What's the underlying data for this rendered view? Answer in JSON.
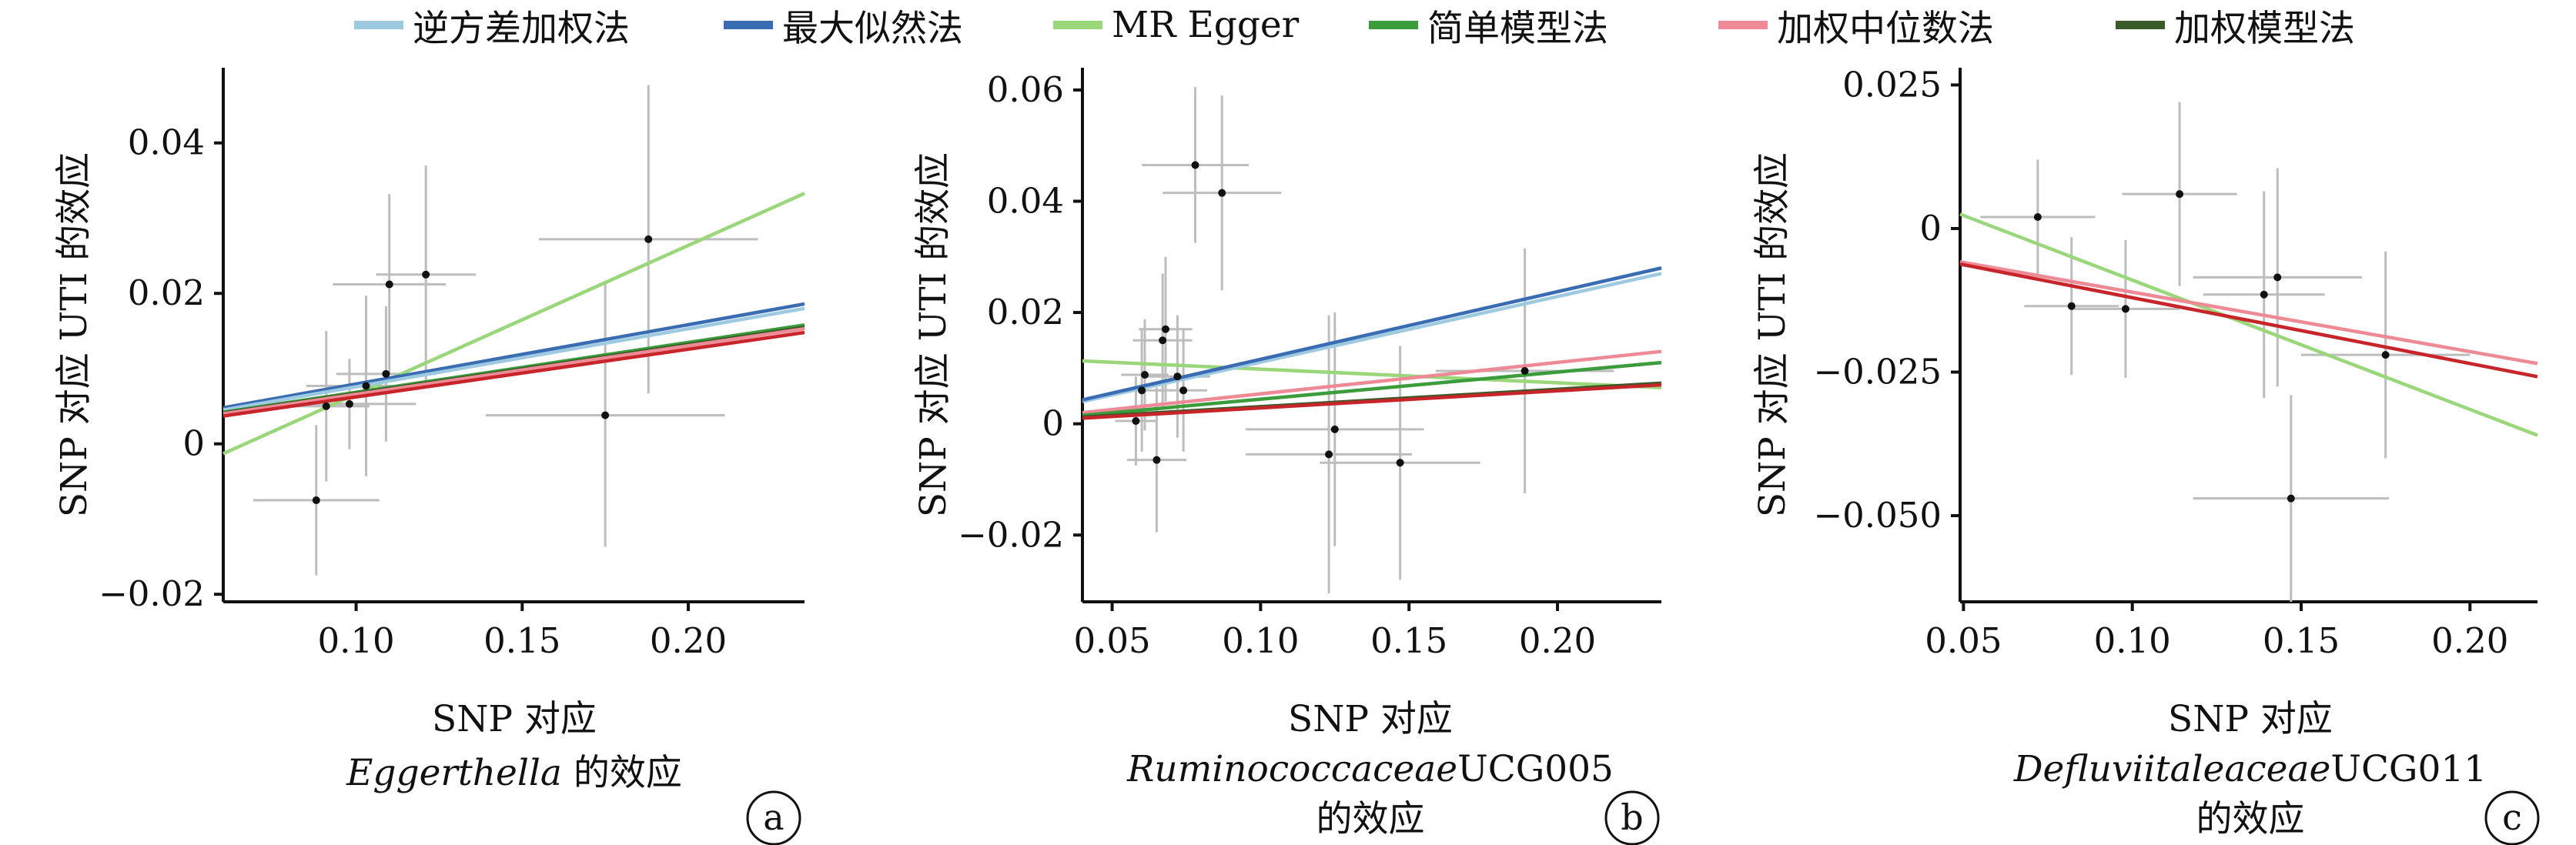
{
  "legend": [
    {
      "key": "ivw",
      "label": "逆方差加权法",
      "color": "#9ecae1"
    },
    {
      "key": "ml",
      "label": "最大似然法",
      "color": "#3a6cb4"
    },
    {
      "key": "egger",
      "label": "MR Egger",
      "color": "#9ad67a"
    },
    {
      "key": "simple",
      "label": "简单模型法",
      "color": "#3a9c3a"
    },
    {
      "key": "wmedian",
      "label": "加权中位数法",
      "color": "#ee8a95"
    },
    {
      "key": "wmode",
      "label": "加权模型法",
      "color": "#3a5a28"
    }
  ],
  "chart_data": [
    {
      "type": "scatter",
      "panel_label": "a",
      "ylabel": "SNP 对应 UTI 的效应",
      "xlabel_lines": [
        {
          "text": "SNP 对应",
          "italic": ""
        },
        {
          "text": " 的效应",
          "italic": "Eggerthella"
        }
      ],
      "xlim": [
        0.06,
        0.235
      ],
      "ylim": [
        -0.021,
        0.05
      ],
      "xticks": [
        0.1,
        0.15,
        0.2
      ],
      "xtick_labels": [
        "0.10",
        "0.15",
        "0.20"
      ],
      "yticks": [
        -0.02,
        0,
        0.02,
        0.04
      ],
      "ytick_labels": [
        "−0.02",
        "0",
        "0.02",
        "0.04"
      ],
      "points": [
        {
          "x": 0.088,
          "y": -0.0075,
          "xerr": 0.019,
          "yerr": 0.01
        },
        {
          "x": 0.091,
          "y": 0.005,
          "xerr": 0.013,
          "yerr": 0.01
        },
        {
          "x": 0.098,
          "y": 0.0053,
          "xerr": 0.02,
          "yerr": 0.006
        },
        {
          "x": 0.103,
          "y": 0.0077,
          "xerr": 0.018,
          "yerr": 0.012
        },
        {
          "x": 0.109,
          "y": 0.0093,
          "xerr": 0.015,
          "yerr": 0.009
        },
        {
          "x": 0.11,
          "y": 0.0212,
          "xerr": 0.017,
          "yerr": 0.012
        },
        {
          "x": 0.121,
          "y": 0.0225,
          "xerr": 0.015,
          "yerr": 0.0145
        },
        {
          "x": 0.175,
          "y": 0.0038,
          "xerr": 0.036,
          "yerr": 0.0175
        },
        {
          "x": 0.188,
          "y": 0.0272,
          "xerr": 0.033,
          "yerr": 0.0205
        }
      ],
      "lines": [
        {
          "method": "egger",
          "y0": -0.0013,
          "y1": 0.0333
        },
        {
          "method": "ml",
          "y0": 0.0048,
          "y1": 0.0186
        },
        {
          "method": "ivw",
          "y0": 0.0045,
          "y1": 0.018
        },
        {
          "method": "simple",
          "y0": 0.0042,
          "y1": 0.0158
        },
        {
          "method": "wmode",
          "y0": 0.0041,
          "y1": 0.0155
        },
        {
          "method": "wmedian",
          "y0": 0.004,
          "y1": 0.0153
        },
        {
          "method": "red",
          "y0": 0.0037,
          "y1": 0.0148
        }
      ]
    },
    {
      "type": "scatter",
      "panel_label": "b",
      "ylabel": "SNP 对应 UTI 的效应",
      "xlabel_lines": [
        {
          "text": "SNP 对应",
          "italic": ""
        },
        {
          "text": "UCG005",
          "italic": "Ruminococcaceae"
        },
        {
          "text": "的效应",
          "italic": ""
        }
      ],
      "xlim": [
        0.04,
        0.235
      ],
      "ylim": [
        -0.032,
        0.064
      ],
      "xticks": [
        0.05,
        0.1,
        0.15,
        0.2
      ],
      "xtick_labels": [
        "0.05",
        "0.10",
        "0.15",
        "0.20"
      ],
      "yticks": [
        -0.02,
        0,
        0.02,
        0.04,
        0.06
      ],
      "ytick_labels": [
        "−0.02",
        "0",
        "0.02",
        "0.04",
        "0.06"
      ],
      "points": [
        {
          "x": 0.058,
          "y": 0.0005,
          "xerr": 0.007,
          "yerr": 0.008
        },
        {
          "x": 0.06,
          "y": 0.006,
          "xerr": 0.007,
          "yerr": 0.011
        },
        {
          "x": 0.061,
          "y": 0.0088,
          "xerr": 0.008,
          "yerr": 0.01
        },
        {
          "x": 0.065,
          "y": -0.0065,
          "xerr": 0.01,
          "yerr": 0.013
        },
        {
          "x": 0.067,
          "y": 0.015,
          "xerr": 0.01,
          "yerr": 0.012
        },
        {
          "x": 0.068,
          "y": 0.017,
          "xerr": 0.009,
          "yerr": 0.013
        },
        {
          "x": 0.072,
          "y": 0.0085,
          "xerr": 0.011,
          "yerr": 0.011
        },
        {
          "x": 0.074,
          "y": 0.006,
          "xerr": 0.008,
          "yerr": 0.011
        },
        {
          "x": 0.078,
          "y": 0.0465,
          "xerr": 0.018,
          "yerr": 0.014
        },
        {
          "x": 0.087,
          "y": 0.0415,
          "xerr": 0.02,
          "yerr": 0.0175
        },
        {
          "x": 0.123,
          "y": -0.0055,
          "xerr": 0.028,
          "yerr": 0.025
        },
        {
          "x": 0.125,
          "y": -0.001,
          "xerr": 0.03,
          "yerr": 0.021
        },
        {
          "x": 0.147,
          "y": -0.007,
          "xerr": 0.027,
          "yerr": 0.021
        },
        {
          "x": 0.189,
          "y": 0.0095,
          "xerr": 0.03,
          "yerr": 0.022
        }
      ],
      "lines": [
        {
          "method": "egger",
          "y0": 0.0113,
          "y1": 0.0065
        },
        {
          "method": "ivw",
          "y0": 0.004,
          "y1": 0.027
        },
        {
          "method": "ml",
          "y0": 0.0043,
          "y1": 0.028
        },
        {
          "method": "wmedian",
          "y0": 0.002,
          "y1": 0.013
        },
        {
          "method": "simple",
          "y0": 0.0015,
          "y1": 0.011
        },
        {
          "method": "wmode",
          "y0": 0.0012,
          "y1": 0.0073
        },
        {
          "method": "red",
          "y0": 0.001,
          "y1": 0.007
        }
      ]
    },
    {
      "type": "scatter",
      "panel_label": "c",
      "ylabel": "SNP 对应 UTI 的效应",
      "xlabel_lines": [
        {
          "text": "SNP 对应",
          "italic": ""
        },
        {
          "text": "UCG011",
          "italic": "Defluviitaleaceae"
        },
        {
          "text": "的效应",
          "italic": ""
        }
      ],
      "xlim": [
        0.049,
        0.22
      ],
      "ylim": [
        -0.065,
        0.028
      ],
      "xticks": [
        0.05,
        0.1,
        0.15,
        0.2
      ],
      "xtick_labels": [
        "0.05",
        "0.10",
        "0.15",
        "0.20"
      ],
      "yticks": [
        -0.05,
        -0.025,
        0,
        0.025
      ],
      "ytick_labels": [
        "−0.050",
        "−0.025",
        "0",
        "0.025"
      ],
      "points": [
        {
          "x": 0.072,
          "y": 0.002,
          "xerr": 0.017,
          "yerr": 0.01
        },
        {
          "x": 0.082,
          "y": -0.0135,
          "xerr": 0.014,
          "yerr": 0.012
        },
        {
          "x": 0.098,
          "y": -0.014,
          "xerr": 0.016,
          "yerr": 0.012
        },
        {
          "x": 0.114,
          "y": 0.006,
          "xerr": 0.017,
          "yerr": 0.016
        },
        {
          "x": 0.139,
          "y": -0.0115,
          "xerr": 0.018,
          "yerr": 0.018
        },
        {
          "x": 0.143,
          "y": -0.0085,
          "xerr": 0.025,
          "yerr": 0.019
        },
        {
          "x": 0.147,
          "y": -0.047,
          "xerr": 0.029,
          "yerr": 0.018
        },
        {
          "x": 0.175,
          "y": -0.022,
          "xerr": 0.025,
          "yerr": 0.018
        }
      ],
      "lines": [
        {
          "method": "egger",
          "y0": 0.0025,
          "y1": -0.036
        },
        {
          "method": "wmedian",
          "y0": -0.0058,
          "y1": -0.0235
        },
        {
          "method": "red",
          "y0": -0.0062,
          "y1": -0.0258
        }
      ]
    }
  ]
}
